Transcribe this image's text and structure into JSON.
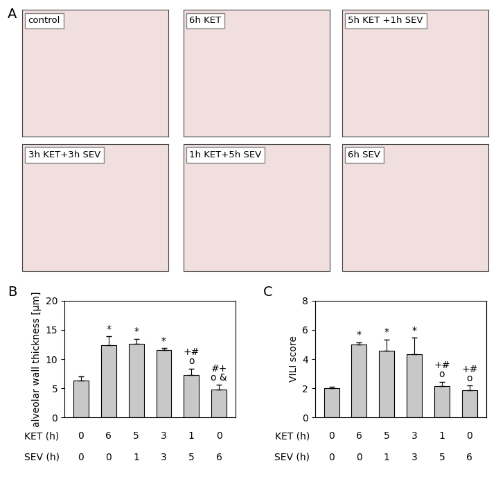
{
  "figure": {
    "panel_labels": [
      "A",
      "B",
      "C"
    ],
    "images": [
      "control",
      "6h KET",
      "5h KET +1h SEV",
      "3h KET+3h SEV",
      "1h KET+5h SEV",
      "6h SEV"
    ]
  },
  "chart_data": [
    {
      "type": "bar",
      "ylabel": "alveolar wall thickness [µm]",
      "categories": [
        null,
        null,
        null,
        null,
        null,
        null
      ],
      "x_rows": [
        {
          "name": "KET (h)",
          "values": [
            0,
            6,
            5,
            3,
            1,
            0
          ]
        },
        {
          "name": "SEV (h)",
          "values": [
            0,
            0,
            1,
            3,
            5,
            6
          ]
        }
      ],
      "values": [
        6.3,
        12.4,
        12.6,
        11.6,
        7.3,
        4.8
      ],
      "errors": [
        0.7,
        1.5,
        0.9,
        0.3,
        1.1,
        0.8
      ],
      "annotations": [
        null,
        "*",
        "*",
        "*",
        "+#\no",
        "#+\no &"
      ],
      "color": "#c8c8c8",
      "ylim": [
        0,
        20
      ],
      "yticks": [
        0,
        5,
        10,
        15,
        20
      ]
    },
    {
      "type": "bar",
      "ylabel": "VILI score",
      "categories": [
        null,
        null,
        null,
        null,
        null,
        null
      ],
      "x_rows": [
        {
          "name": "KET (h)",
          "values": [
            0,
            6,
            5,
            3,
            1,
            0
          ]
        },
        {
          "name": "SEV (h)",
          "values": [
            0,
            0,
            1,
            3,
            5,
            6
          ]
        }
      ],
      "values": [
        2.0,
        5.0,
        4.55,
        4.35,
        2.15,
        1.85
      ],
      "errors": [
        0.1,
        0.15,
        0.8,
        1.1,
        0.3,
        0.35
      ],
      "annotations": [
        null,
        "*",
        "*",
        "*",
        "+#\no",
        "+#\no"
      ],
      "color": "#c8c8c8",
      "ylim": [
        0,
        8
      ],
      "yticks": [
        0,
        2,
        4,
        6,
        8
      ]
    }
  ]
}
